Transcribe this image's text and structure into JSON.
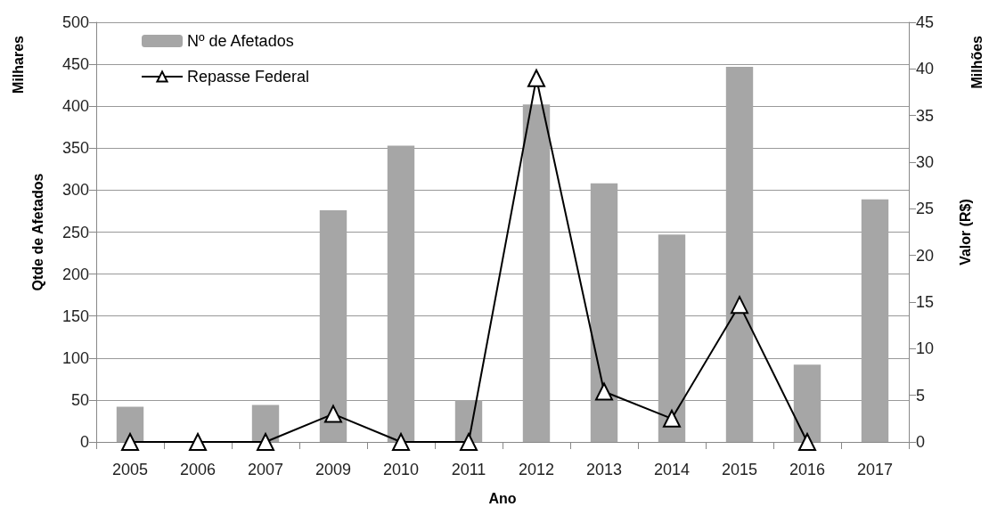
{
  "chart_data": {
    "type": "bar",
    "xlabel": "Ano",
    "ylabel": "Qtde de Afetados",
    "y2label": "Valor (R$)",
    "annotations": [
      "Milhares",
      "Milhões"
    ],
    "categories": [
      "2005",
      "2006",
      "2007",
      "2009",
      "2010",
      "2011",
      "2012",
      "2013",
      "2014",
      "2015",
      "2016",
      "2017"
    ],
    "series": [
      {
        "name": "Nº de Afetados",
        "color": "#a6a6a6",
        "values": [
          42,
          0,
          44,
          276,
          353,
          50,
          402,
          308,
          247,
          447,
          92,
          289
        ]
      },
      {
        "name": "Repasse Federal",
        "type": "line",
        "axis": "y2",
        "color": "#000000",
        "marker": "triangle",
        "values": [
          0,
          0,
          0,
          3,
          0,
          0,
          39,
          5.4,
          2.5,
          14.7,
          0,
          null
        ]
      }
    ],
    "ylim": [
      0,
      500
    ],
    "yticks": [
      0,
      50,
      100,
      150,
      200,
      250,
      300,
      350,
      400,
      450,
      500
    ],
    "y2lim": [
      0,
      45
    ],
    "y2ticks": [
      0,
      5,
      10,
      15,
      20,
      25,
      30,
      35,
      40,
      45
    ],
    "grid": "y",
    "legend": "top left"
  }
}
